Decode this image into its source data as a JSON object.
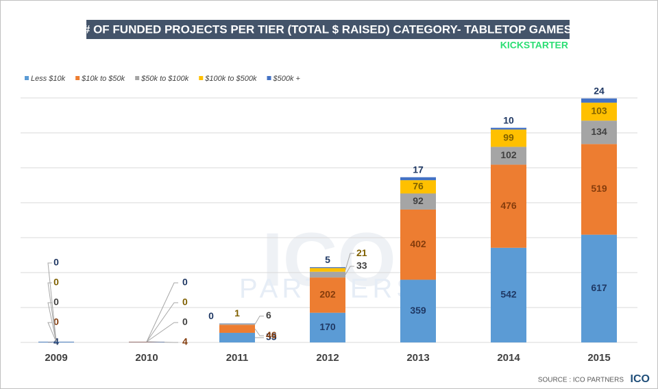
{
  "chart_data": {
    "type": "stacked_bar",
    "title": "# OF FUNDED PROJECTS PER TIER (TOTAL $ RAISED) CATEGORY- TABLETOP GAMES",
    "brand": "KICKSTARTER",
    "watermark": [
      "ICO",
      "PARTNERS"
    ],
    "source": "SOURCE : ICO PARTNERS",
    "source_logo": "ICO",
    "categories": [
      "2009",
      "2010",
      "2011",
      "2012",
      "2013",
      "2014",
      "2015"
    ],
    "series": [
      {
        "name": "Less $10k",
        "color": "#5b9bd5",
        "label_color": "#1f3864",
        "values": [
          4,
          null,
          55,
          170,
          359,
          542,
          617
        ]
      },
      {
        "name": "$10k to $50k",
        "color": "#ed7d31",
        "label_color": "#843c0c",
        "values": [
          0,
          4,
          46,
          202,
          402,
          476,
          519
        ]
      },
      {
        "name": "$50k to $100k",
        "color": "#a5a5a5",
        "label_color": "#404040",
        "values": [
          0,
          0,
          6,
          33,
          92,
          102,
          134
        ]
      },
      {
        "name": "$100k to $500k",
        "color": "#ffc000",
        "label_color": "#7f6000",
        "values": [
          0,
          0,
          1,
          21,
          76,
          99,
          103
        ]
      },
      {
        "name": "$500k +",
        "color": "#4472c4",
        "label_color": "#1f3864",
        "values": [
          0,
          0,
          0,
          5,
          17,
          10,
          24
        ]
      }
    ],
    "ylim": [
      0,
      1400
    ],
    "yticks": [
      0,
      200,
      400,
      600,
      800,
      1000,
      1200,
      1400
    ],
    "grid": true,
    "legend": "top-left"
  }
}
